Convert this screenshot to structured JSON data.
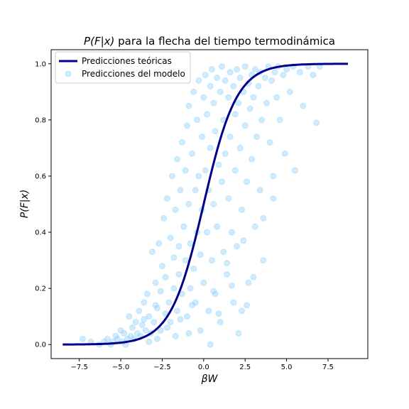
{
  "chart_data": {
    "type": "scatter",
    "title_math": "P(F|x)",
    "title_rest": " para la flecha del tiempo termodinámica",
    "xlabel": "βW",
    "ylabel": "P(F|x)",
    "xlim": [
      -9.2,
      9.9
    ],
    "ylim": [
      -0.05,
      1.05
    ],
    "x_ticks": [
      -7.5,
      -5.0,
      -2.5,
      0.0,
      2.5,
      5.0,
      7.5
    ],
    "x_tick_labels": [
      "−7.5",
      "−5.0",
      "−2.5",
      "0.0",
      "2.5",
      "5.0",
      "7.5"
    ],
    "y_ticks": [
      0.0,
      0.2,
      0.4,
      0.6,
      0.8,
      1.0
    ],
    "y_tick_labels": [
      "0.0",
      "0.2",
      "0.4",
      "0.6",
      "0.8",
      "1.0"
    ],
    "grid": false,
    "legend_position": "top-left",
    "series": [
      {
        "name": "Predicciones teóricas",
        "kind": "line",
        "color": "#00008b",
        "function": "sigmoid",
        "x_range": [
          -8.5,
          8.7
        ],
        "x": [
          -8.5,
          -7.5,
          -6.5,
          -5.5,
          -5.0,
          -4.5,
          -4.0,
          -3.5,
          -3.0,
          -2.5,
          -2.0,
          -1.5,
          -1.0,
          -0.5,
          0.0,
          0.5,
          1.0,
          1.5,
          2.0,
          2.5,
          3.0,
          3.5,
          4.0,
          4.5,
          5.0,
          5.5,
          6.5,
          7.5,
          8.7
        ],
        "y": [
          0.0002,
          0.0006,
          0.0015,
          0.0041,
          0.0067,
          0.011,
          0.018,
          0.029,
          0.047,
          0.076,
          0.119,
          0.182,
          0.269,
          0.378,
          0.5,
          0.622,
          0.731,
          0.818,
          0.881,
          0.924,
          0.953,
          0.971,
          0.982,
          0.989,
          0.993,
          0.996,
          0.9985,
          0.9994,
          0.9998
        ]
      },
      {
        "name": "Predicciones del modelo",
        "kind": "scatter",
        "color": "#87cefa",
        "alpha": 0.4,
        "points": [
          [
            -7.3,
            0.02
          ],
          [
            -6.8,
            0.01
          ],
          [
            -6.3,
            0.0
          ],
          [
            -6.0,
            0.01
          ],
          [
            -5.8,
            0.02
          ],
          [
            -5.5,
            0.01
          ],
          [
            -5.3,
            0.03
          ],
          [
            -5.2,
            0.02
          ],
          [
            -5.0,
            0.05
          ],
          [
            -4.9,
            0.01
          ],
          [
            -4.8,
            0.04
          ],
          [
            -4.6,
            0.02
          ],
          [
            -4.5,
            0.1
          ],
          [
            -4.4,
            0.03
          ],
          [
            -4.3,
            0.06
          ],
          [
            -4.2,
            0.02
          ],
          [
            -4.1,
            0.08
          ],
          [
            -4.0,
            0.04
          ],
          [
            -3.9,
            0.12
          ],
          [
            -3.8,
            0.03
          ],
          [
            -3.7,
            0.07
          ],
          [
            -3.6,
            0.15
          ],
          [
            -3.5,
            0.05
          ],
          [
            -3.4,
            0.18
          ],
          [
            -3.3,
            0.1
          ],
          [
            -3.2,
            0.04
          ],
          [
            -3.1,
            0.33
          ],
          [
            -3.0,
            0.08
          ],
          [
            -2.9,
            0.22
          ],
          [
            -2.8,
            0.13
          ],
          [
            -2.7,
            0.36
          ],
          [
            -2.6,
            0.05
          ],
          [
            -2.6,
            0.19
          ],
          [
            -2.5,
            0.28
          ],
          [
            -2.4,
            0.45
          ],
          [
            -2.3,
            0.11
          ],
          [
            -2.3,
            0.24
          ],
          [
            -2.2,
            0.52
          ],
          [
            -2.1,
            0.15
          ],
          [
            -2.0,
            0.38
          ],
          [
            -2.0,
            0.08
          ],
          [
            -1.9,
            0.6
          ],
          [
            -1.8,
            0.31
          ],
          [
            -1.8,
            0.2
          ],
          [
            -1.7,
            0.48
          ],
          [
            -1.6,
            0.12
          ],
          [
            -1.6,
            0.66
          ],
          [
            -1.5,
            0.35
          ],
          [
            -1.5,
            0.25
          ],
          [
            -1.4,
            0.55
          ],
          [
            -1.3,
            0.72
          ],
          [
            -1.3,
            0.18
          ],
          [
            -1.2,
            0.42
          ],
          [
            -1.1,
            0.62
          ],
          [
            -1.1,
            0.3
          ],
          [
            -1.0,
            0.78
          ],
          [
            -1.0,
            0.1
          ],
          [
            -0.9,
            0.5
          ],
          [
            -0.9,
            0.85
          ],
          [
            -0.8,
            0.36
          ],
          [
            -0.8,
            0.2
          ],
          [
            -0.7,
            0.68
          ],
          [
            -0.6,
            0.9
          ],
          [
            -0.6,
            0.27
          ],
          [
            -0.5,
            0.55
          ],
          [
            -0.5,
            0.15
          ],
          [
            -0.4,
            0.8
          ],
          [
            -0.4,
            0.4
          ],
          [
            -0.3,
            0.94
          ],
          [
            -0.3,
            0.6
          ],
          [
            -0.2,
            0.32
          ],
          [
            -0.2,
            0.05
          ],
          [
            -0.1,
            0.74
          ],
          [
            -0.1,
            0.48
          ],
          [
            0.0,
            0.88
          ],
          [
            0.0,
            0.22
          ],
          [
            0.1,
            0.62
          ],
          [
            0.1,
            0.96
          ],
          [
            0.2,
            0.4
          ],
          [
            0.2,
            0.82
          ],
          [
            0.3,
            0.12
          ],
          [
            0.3,
            0.55
          ],
          [
            0.4,
            0.92
          ],
          [
            0.4,
            0.7
          ],
          [
            0.5,
            0.3
          ],
          [
            0.5,
            0.98
          ],
          [
            0.6,
            0.5
          ],
          [
            0.6,
            0.86
          ],
          [
            0.7,
            0.18
          ],
          [
            0.7,
            0.76
          ],
          [
            0.8,
            0.95
          ],
          [
            0.8,
            0.42
          ],
          [
            0.9,
            0.64
          ],
          [
            1.0,
            0.9
          ],
          [
            1.0,
            0.08
          ],
          [
            1.1,
            0.58
          ],
          [
            1.1,
            0.99
          ],
          [
            1.2,
            0.33
          ],
          [
            1.2,
            0.8
          ],
          [
            1.3,
            0.94
          ],
          [
            1.3,
            0.68
          ],
          [
            1.4,
            0.25
          ],
          [
            1.5,
            0.88
          ],
          [
            1.5,
            0.52
          ],
          [
            1.6,
            0.97
          ],
          [
            1.6,
            0.74
          ],
          [
            1.7,
            0.4
          ],
          [
            1.8,
            0.92
          ],
          [
            1.8,
            0.15
          ],
          [
            1.9,
            0.82
          ],
          [
            1.9,
            0.62
          ],
          [
            2.0,
            0.98
          ],
          [
            2.0,
            0.35
          ],
          [
            2.1,
            0.86
          ],
          [
            2.2,
            0.7
          ],
          [
            2.2,
            0.95
          ],
          [
            2.3,
            0.48
          ],
          [
            2.3,
            0.12
          ],
          [
            2.4,
            0.9
          ],
          [
            2.5,
            0.78
          ],
          [
            2.5,
            0.99
          ],
          [
            2.6,
            0.58
          ],
          [
            2.7,
            0.93
          ],
          [
            2.7,
            0.22
          ],
          [
            2.8,
            0.84
          ],
          [
            2.9,
            0.96
          ],
          [
            2.9,
            0.66
          ],
          [
            3.0,
            0.88
          ],
          [
            3.1,
            0.42
          ],
          [
            3.1,
            0.98
          ],
          [
            3.2,
            0.74
          ],
          [
            3.3,
            0.92
          ],
          [
            3.4,
            0.55
          ],
          [
            3.4,
            0.97
          ],
          [
            3.5,
            0.8
          ],
          [
            3.6,
            0.3
          ],
          [
            3.7,
            0.95
          ],
          [
            3.8,
            0.86
          ],
          [
            3.9,
            0.99
          ],
          [
            4.0,
            0.72
          ],
          [
            4.1,
            0.94
          ],
          [
            4.2,
            0.6
          ],
          [
            4.3,
            0.97
          ],
          [
            4.4,
            0.88
          ],
          [
            4.5,
            0.99
          ],
          [
            4.6,
            0.8
          ],
          [
            4.8,
            0.96
          ],
          [
            4.9,
            0.68
          ],
          [
            5.0,
            0.98
          ],
          [
            5.2,
            0.9
          ],
          [
            5.4,
            0.99
          ],
          [
            5.5,
            0.62
          ],
          [
            5.8,
            0.97
          ],
          [
            6.0,
            0.85
          ],
          [
            6.3,
            0.99
          ],
          [
            6.6,
            0.96
          ],
          [
            6.8,
            0.79
          ],
          [
            7.0,
            0.99
          ],
          [
            -5.6,
            0.0
          ],
          [
            -4.7,
            0.0
          ],
          [
            -3.3,
            0.01
          ],
          [
            -2.8,
            0.02
          ],
          [
            -1.7,
            0.03
          ],
          [
            -0.9,
            0.04
          ],
          [
            0.4,
            0.0
          ],
          [
            0.9,
            0.11
          ],
          [
            1.7,
            0.21
          ],
          [
            2.1,
            0.04
          ],
          [
            2.6,
            0.14
          ],
          [
            3.0,
            0.24
          ],
          [
            -2.2,
            0.06
          ],
          [
            -1.4,
            0.09
          ],
          [
            -0.7,
            0.14
          ],
          [
            0.6,
            0.19
          ],
          [
            1.4,
            0.29
          ],
          [
            2.4,
            0.37
          ],
          [
            3.6,
            0.45
          ],
          [
            4.2,
            0.52
          ],
          [
            -3.6,
            0.09
          ],
          [
            -2.9,
            0.14
          ]
        ]
      }
    ]
  }
}
